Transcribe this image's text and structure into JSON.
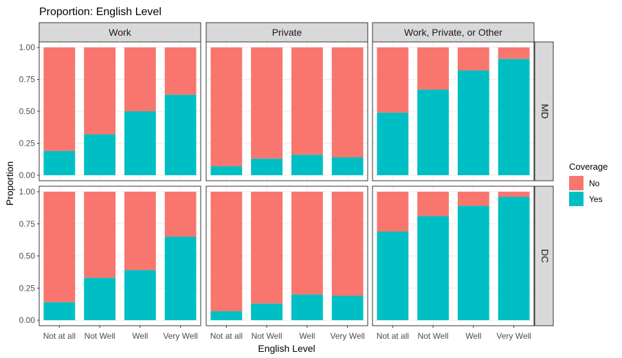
{
  "chart_data": {
    "type": "bar",
    "stacked": true,
    "title": "Proportion: English Level",
    "xlabel": "English Level",
    "ylabel": "Proportion",
    "ylim": [
      0,
      1
    ],
    "yticks": [
      "0.00",
      "0.25",
      "0.50",
      "0.75",
      "1.00"
    ],
    "categories": [
      "Not at all",
      "Not Well",
      "Well",
      "Very Well"
    ],
    "legend": {
      "title": "Coverage",
      "placement": "right",
      "entries": [
        {
          "name": "No",
          "color": "#F8766D"
        },
        {
          "name": "Yes",
          "color": "#00BFC4"
        }
      ]
    },
    "facet_columns": [
      "Work",
      "Private",
      "Work, Private, or Other"
    ],
    "facet_rows": [
      "MD",
      "DC"
    ],
    "panels": [
      {
        "col": "Work",
        "row": "MD",
        "series": [
          {
            "name": "Yes",
            "values": [
              0.19,
              0.32,
              0.5,
              0.63
            ]
          },
          {
            "name": "No",
            "values": [
              0.81,
              0.68,
              0.5,
              0.37
            ]
          }
        ]
      },
      {
        "col": "Private",
        "row": "MD",
        "series": [
          {
            "name": "Yes",
            "values": [
              0.07,
              0.13,
              0.16,
              0.14
            ]
          },
          {
            "name": "No",
            "values": [
              0.93,
              0.87,
              0.84,
              0.86
            ]
          }
        ]
      },
      {
        "col": "Work, Private, or Other",
        "row": "MD",
        "series": [
          {
            "name": "Yes",
            "values": [
              0.49,
              0.67,
              0.82,
              0.91
            ]
          },
          {
            "name": "No",
            "values": [
              0.51,
              0.33,
              0.18,
              0.09
            ]
          }
        ]
      },
      {
        "col": "Work",
        "row": "DC",
        "series": [
          {
            "name": "Yes",
            "values": [
              0.14,
              0.33,
              0.39,
              0.65
            ]
          },
          {
            "name": "No",
            "values": [
              0.86,
              0.67,
              0.61,
              0.35
            ]
          }
        ]
      },
      {
        "col": "Private",
        "row": "DC",
        "series": [
          {
            "name": "Yes",
            "values": [
              0.07,
              0.13,
              0.2,
              0.19
            ]
          },
          {
            "name": "No",
            "values": [
              0.93,
              0.87,
              0.8,
              0.81
            ]
          }
        ]
      },
      {
        "col": "Work, Private, or Other",
        "row": "DC",
        "series": [
          {
            "name": "Yes",
            "values": [
              0.69,
              0.81,
              0.89,
              0.96
            ]
          },
          {
            "name": "No",
            "values": [
              0.31,
              0.19,
              0.11,
              0.04
            ]
          }
        ]
      }
    ]
  }
}
